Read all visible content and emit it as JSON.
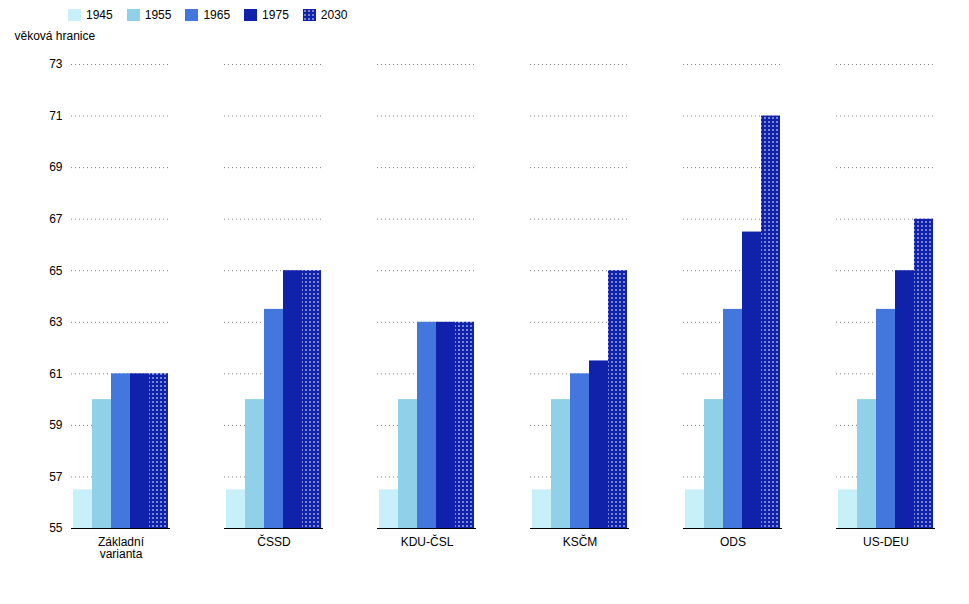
{
  "chart_data": {
    "type": "bar",
    "categories": [
      "Základní\nvarianta",
      "ČSSD",
      "KDU-ČSL",
      "KSČM",
      "ODS",
      "US-DEU"
    ],
    "series": [
      {
        "name": "1945",
        "color": "#c8f0f8",
        "values": [
          56.5,
          56.5,
          56.5,
          56.5,
          56.5,
          56.5
        ]
      },
      {
        "name": "1955",
        "color": "#90d0e8",
        "values": [
          60.0,
          60.0,
          60.0,
          60.0,
          60.0,
          60.0
        ]
      },
      {
        "name": "1965",
        "color": "#4477dd",
        "values": [
          61.0,
          63.5,
          63.0,
          61.0,
          63.5,
          63.5
        ]
      },
      {
        "name": "1975",
        "color": "#1122aa",
        "values": [
          61.0,
          65.0,
          63.0,
          61.5,
          66.5,
          65.0
        ]
      },
      {
        "name": "2030",
        "color": "#1122aa",
        "values": [
          61.0,
          65.0,
          63.0,
          65.0,
          71.0,
          67.0
        ]
      }
    ],
    "ylabel": "věková hranice",
    "ylim": [
      55,
      73
    ],
    "yticks": [
      55,
      57,
      59,
      61,
      63,
      65,
      67,
      69,
      71,
      73
    ],
    "grid": true
  }
}
